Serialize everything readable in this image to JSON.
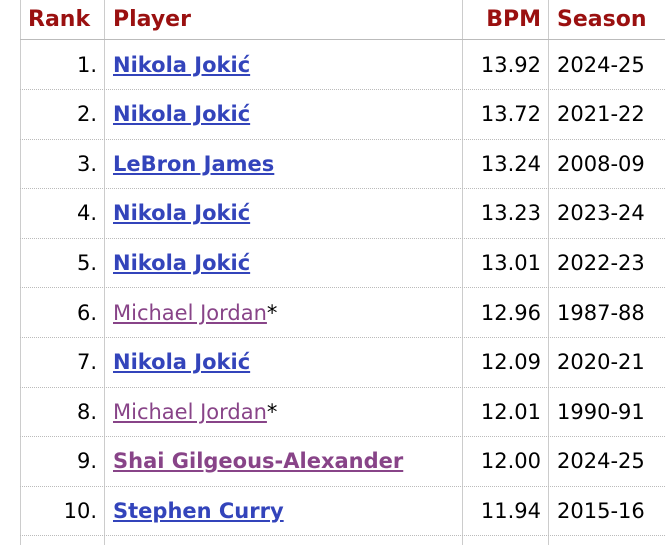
{
  "table": {
    "columns": [
      "Rank",
      "Player",
      "BPM",
      "Season"
    ],
    "rows": [
      {
        "rank": "1.",
        "player": "Nikola Jokić",
        "bpm": "13.92",
        "season": "2024-25"
      },
      {
        "rank": "2.",
        "player": "Nikola Jokić",
        "bpm": "13.72",
        "season": "2021-22"
      },
      {
        "rank": "3.",
        "player": "LeBron James",
        "bpm": "13.24",
        "season": "2008-09"
      },
      {
        "rank": "4.",
        "player": "Nikola Jokić",
        "bpm": "13.23",
        "season": "2023-24"
      },
      {
        "rank": "5.",
        "player": "Nikola Jokić",
        "bpm": "13.01",
        "season": "2022-23"
      },
      {
        "rank": "6.",
        "player": "Michael Jordan",
        "note": "*",
        "bpm": "12.96",
        "season": "1987-88"
      },
      {
        "rank": "7.",
        "player": "Nikola Jokić",
        "bpm": "12.09",
        "season": "2020-21"
      },
      {
        "rank": "8.",
        "player": "Michael Jordan",
        "note": "*",
        "bpm": "12.01",
        "season": "1990-91"
      },
      {
        "rank": "9.",
        "player": "Shai Gilgeous-Alexander",
        "bpm": "12.00",
        "season": "2024-25"
      },
      {
        "rank": "10.",
        "player": "Stephen Curry",
        "bpm": "11.94",
        "season": "2015-16"
      }
    ]
  }
}
